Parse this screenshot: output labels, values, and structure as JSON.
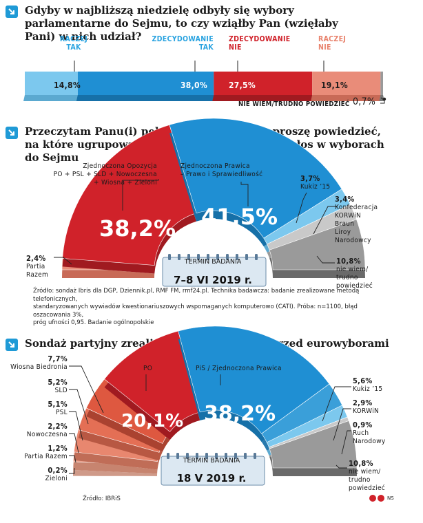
{
  "colors": {
    "blue_light": "#7cc8ee",
    "blue": "#1f8fd3",
    "red": "#d0222a",
    "salmon": "#e98c79",
    "gray": "#9a9a9a",
    "gray_dark": "#6f6f6f",
    "label_blue": "#2aa3e0",
    "label_red": "#d0222a",
    "label_salmon": "#e8826c"
  },
  "section1": {
    "title": "Gdyby w najbliższą niedzielę odbyły się wybory parlamentarne do Sejmu, to czy wziąłby Pan (wzięłaby Pani) w nich udział?",
    "cat_labels": [
      [
        "RACZEJ",
        "TAK"
      ],
      [
        "ZDECYDOWANIE",
        "TAK"
      ],
      [
        "ZDECYDOWANIE",
        "NIE"
      ],
      [
        "RACZEJ",
        "NIE"
      ]
    ],
    "value_labels": [
      "14,8%",
      "38,0%",
      "27,5%",
      "19,1%"
    ],
    "other_label": "NIE WIEM/TRUDNO POWIEDZIEĆ",
    "other_value": "0,7%"
  },
  "section2": {
    "title": "Przeczytam Panu(i) pełną listę komitetów, proszę powiedzieć, na które ugrupowanie oddał(a)by Pan(i) swój głos w wyborach do Sejmu",
    "label_ko": [
      "Zjednoczona Opozycja",
      "PO + PSL + SLD + Nowoczesna",
      "+ Wiosna + Zieloni"
    ],
    "label_pis": [
      "Zjednoczona Prawica",
      "– Prawo i Sprawiedliwość"
    ],
    "big_ko": "38,2%",
    "big_pis": "41,5%",
    "kukiz_val": "3,7%",
    "kukiz_lbl": "Kukiz ’15",
    "konf_val": "3,4%",
    "konf_lbl": [
      "Konfederacja",
      "KORWiN",
      "Braun",
      "Liroy",
      "Narodowcy"
    ],
    "razem_val": "2,4%",
    "razem_lbl": [
      "Partia",
      "Razem"
    ],
    "nw_val": "10,8%",
    "nw_lbl": [
      "nie wiem/",
      "trudno",
      "powiedzieć"
    ],
    "termin_caption": "TERMIN BADANIA",
    "termin_date": "7–8 VI 2019 r.",
    "source": [
      "Źródło: sondaż Ibris dla DGP, Dziennik.pl, RMF FM, rmf24.pl. Technika badawcza: badanie zrealizowane metodą telefonicznych,",
      "standaryzowanych wywiadów kwestionariuszowych wspomaganych komputerowo (CATI). Próba: n=1100, błąd oszacowania 3%,",
      "próg ufności 0,95. Badanie ogólnopolskie"
    ]
  },
  "section3": {
    "title": "Sondaż partyjny zrealizowany przez IBRiS przed eurowyborami",
    "left": [
      {
        "v": "7,7%",
        "l": "Wiosna Biedronia"
      },
      {
        "v": "5,2%",
        "l": "SLD"
      },
      {
        "v": "5,1%",
        "l": "PSL"
      },
      {
        "v": "2,2%",
        "l": "Nowoczesna"
      },
      {
        "v": "1,2%",
        "l": "Partia Razem"
      },
      {
        "v": "0,2%",
        "l": "Zieloni"
      }
    ],
    "po_lbl": "PO",
    "pis_lbl": "PiS / Zjednoczona Prawica",
    "big_po": "20,1%",
    "big_pis": "38,2%",
    "right": [
      {
        "v": "5,6%",
        "l": [
          "Kukiz ’15"
        ]
      },
      {
        "v": "2,9%",
        "l": [
          "KORWiN"
        ]
      },
      {
        "v": "0,9%",
        "l": [
          "Ruch",
          "Narodowy"
        ]
      },
      {
        "v": "10,8%",
        "l": [
          "nie wiem/",
          "trudno",
          "powiedzieć"
        ]
      }
    ],
    "termin_caption": "TERMIN BADANIA",
    "termin_date": "18 V 2019 r.",
    "source": "Źródło: IBRiS",
    "credit": "NS"
  },
  "chart_data": [
    {
      "type": "bar",
      "orientation": "stacked-horizontal",
      "title": "Gdyby w najbliższą niedzielę odbyły się wybory parlamentarne do Sejmu, to czy wziąłby Pan (wzięłaby Pani) w nich udział?",
      "categories": [
        "RACZEJ TAK",
        "ZDECYDOWANIE TAK",
        "ZDECYDOWANIE NIE",
        "RACZEJ NIE",
        "NIE WIEM/TRUDNO POWIEDZIEĆ"
      ],
      "values": [
        14.8,
        38.0,
        27.5,
        19.1,
        0.7
      ]
    },
    {
      "type": "pie",
      "shape": "half-donut",
      "title": "Przeczytam Panu(i) pełną listę komitetów, proszę powiedzieć, na które ugrupowanie oddał(a)by Pan(i) swój głos w wyborach do Sejmu",
      "categories": [
        "Partia Razem",
        "Zjednoczona Opozycja",
        "Zjednoczona Prawica",
        "Kukiz ’15",
        "Konfederacja",
        "nie wiem/trudno powiedzieć"
      ],
      "values": [
        2.4,
        38.2,
        41.5,
        3.7,
        3.4,
        10.8
      ]
    },
    {
      "type": "pie",
      "shape": "half-donut",
      "title": "Sondaż partyjny zrealizowany przez IBRiS przed eurowyborami",
      "categories": [
        "Zieloni",
        "Partia Razem",
        "Nowoczesna",
        "PSL",
        "SLD",
        "Wiosna Biedronia",
        "PO",
        "PiS / Zjednoczona Prawica",
        "Kukiz ’15",
        "KORWiN",
        "Ruch Narodowy",
        "nie wiem/trudno powiedzieć"
      ],
      "values": [
        0.2,
        1.2,
        2.2,
        5.1,
        5.2,
        7.7,
        20.1,
        38.2,
        5.6,
        2.9,
        0.9,
        10.8
      ]
    }
  ]
}
